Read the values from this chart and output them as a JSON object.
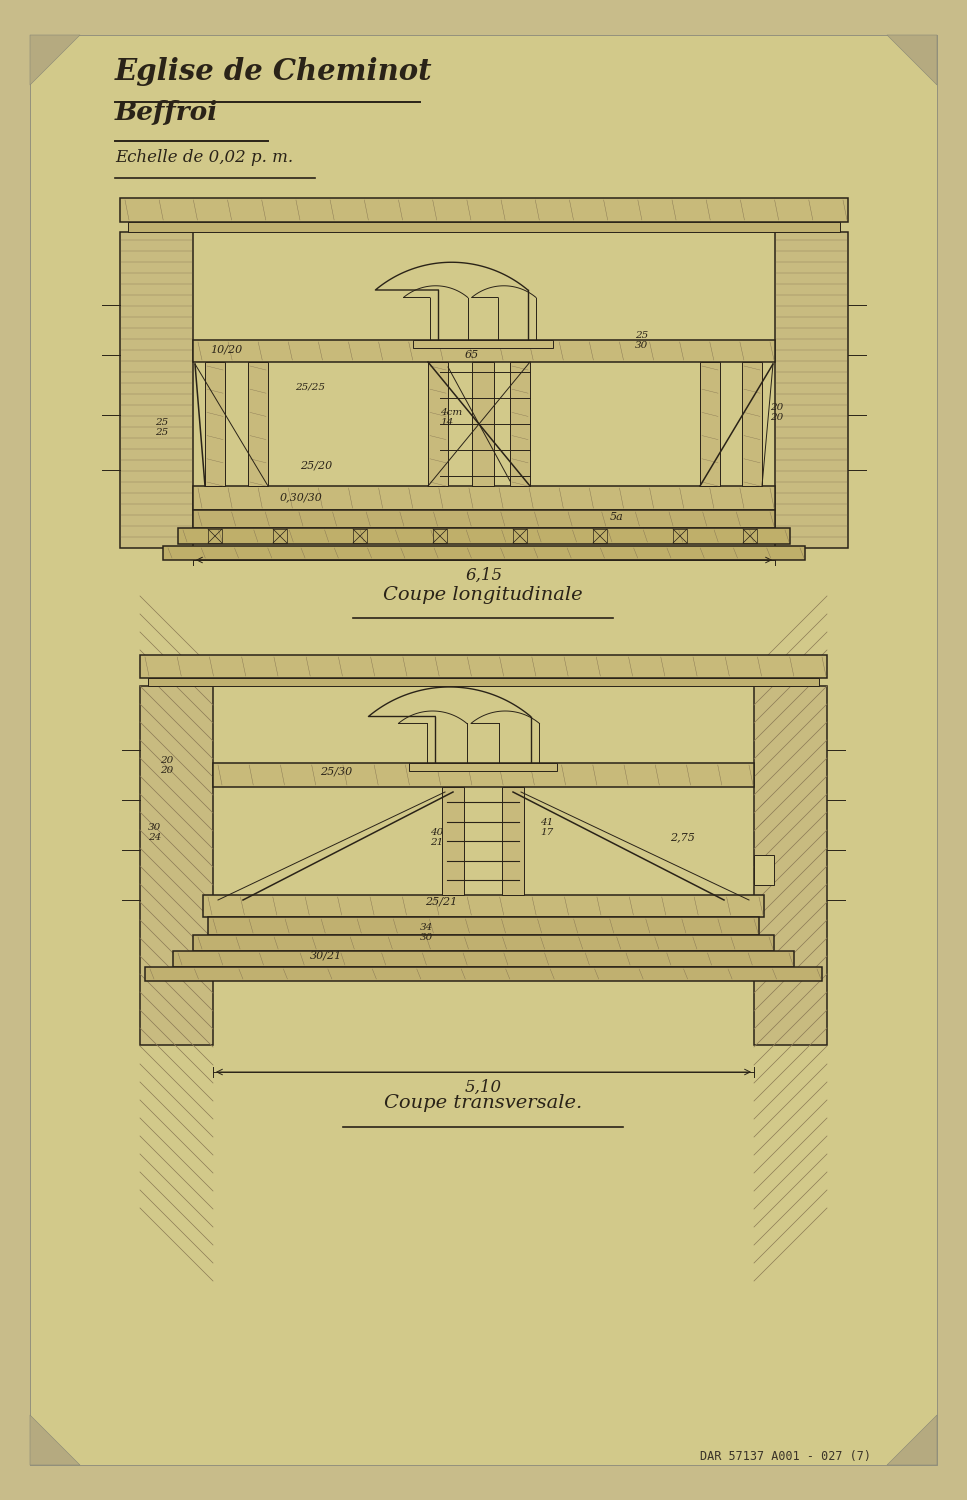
{
  "bg_color": "#c8bc8a",
  "paper_color": "#d2c98a",
  "line_color": "#2a2318",
  "title1": "Eglise de Cheminot",
  "title2": "Beffroi",
  "scale_text": "Echelle de 0,02 p. m.",
  "label1": "Coupe longitudinale",
  "label2": "Coupe transversale.",
  "dim1": "6,15",
  "dim2": "5,10",
  "stamp": "DAR 57137 A001 - 027 (7)",
  "wood_fill": "#c8ba7a",
  "wood_dark": "#8b7a55",
  "paper_fill": "#d0c888"
}
